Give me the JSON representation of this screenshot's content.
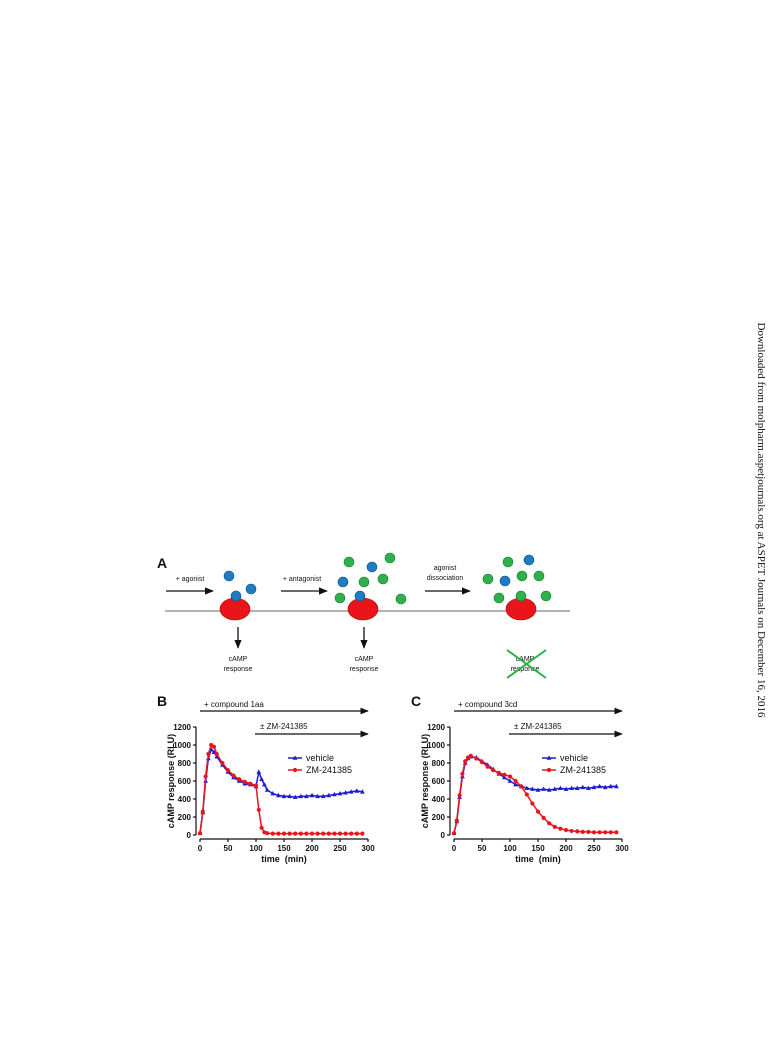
{
  "side_note": "Downloaded from molpharm.aspetjournals.org at ASPET Journals on December 16, 2016",
  "diagram": {
    "panel_label": "A",
    "step1": "+ agonist",
    "step2": "+ antagonist",
    "step3": [
      "agonist",
      "dissociation"
    ],
    "responses": [
      [
        "cAMP",
        "response"
      ],
      [
        "cAMP",
        "response"
      ],
      [
        "cAMP",
        "response"
      ]
    ]
  },
  "chart_data": [
    {
      "type": "line",
      "panel_label": "B",
      "annotations": [
        "+ compound 1aa",
        "± ZM-241385"
      ],
      "x_label": "time  (min)",
      "y_label": "cAMP response (RLU)",
      "xlim": [
        0,
        300
      ],
      "xticks": [
        0,
        50,
        100,
        150,
        200,
        250,
        300
      ],
      "ylim": [
        0,
        1200
      ],
      "yticks": [
        0,
        200,
        400,
        600,
        800,
        1000,
        1200
      ],
      "x": [
        0,
        5,
        10,
        15,
        20,
        25,
        30,
        40,
        50,
        60,
        70,
        80,
        90,
        100,
        105,
        110,
        115,
        120,
        130,
        140,
        150,
        160,
        170,
        180,
        190,
        200,
        210,
        220,
        230,
        240,
        250,
        260,
        270,
        280,
        290
      ],
      "series": [
        {
          "name": "vehicle",
          "color": "#1c1cd4",
          "marker": "triangle",
          "values": [
            20,
            250,
            600,
            850,
            950,
            920,
            870,
            780,
            700,
            640,
            600,
            570,
            560,
            540,
            700,
            620,
            560,
            500,
            460,
            440,
            430,
            430,
            420,
            430,
            430,
            440,
            430,
            430,
            440,
            450,
            460,
            470,
            480,
            490,
            480
          ]
        },
        {
          "name": "ZM-241385",
          "color": "#e8161b",
          "marker": "circle",
          "values": [
            20,
            260,
            650,
            900,
            1000,
            980,
            900,
            800,
            720,
            660,
            620,
            590,
            570,
            550,
            280,
            80,
            30,
            20,
            15,
            15,
            15,
            15,
            15,
            15,
            15,
            15,
            15,
            15,
            15,
            15,
            15,
            15,
            15,
            15,
            15
          ]
        }
      ]
    },
    {
      "type": "line",
      "panel_label": "C",
      "annotations": [
        "+ compound 3cd",
        "± ZM-241385"
      ],
      "x_label": "time  (min)",
      "y_label": "cAMP response (RLU)",
      "xlim": [
        0,
        300
      ],
      "xticks": [
        0,
        50,
        100,
        150,
        200,
        250,
        300
      ],
      "ylim": [
        0,
        1200
      ],
      "yticks": [
        0,
        200,
        400,
        600,
        800,
        1000,
        1200
      ],
      "x": [
        0,
        5,
        10,
        15,
        20,
        25,
        30,
        40,
        50,
        60,
        70,
        80,
        90,
        100,
        110,
        120,
        130,
        140,
        150,
        160,
        170,
        180,
        190,
        200,
        210,
        220,
        230,
        240,
        250,
        260,
        270,
        280,
        290
      ],
      "series": [
        {
          "name": "vehicle",
          "color": "#1c1cd4",
          "marker": "triangle",
          "values": [
            20,
            150,
            420,
            650,
            800,
            850,
            870,
            860,
            820,
            780,
            730,
            680,
            640,
            600,
            560,
            540,
            520,
            510,
            500,
            510,
            500,
            510,
            520,
            510,
            520,
            520,
            530,
            520,
            530,
            540,
            530,
            540,
            540
          ]
        },
        {
          "name": "ZM-241385",
          "color": "#e8161b",
          "marker": "circle",
          "values": [
            20,
            160,
            440,
            680,
            820,
            860,
            880,
            850,
            810,
            760,
            720,
            690,
            670,
            650,
            600,
            540,
            450,
            350,
            260,
            190,
            130,
            90,
            70,
            55,
            45,
            40,
            35,
            35,
            30,
            30,
            30,
            30,
            30
          ]
        }
      ]
    }
  ]
}
